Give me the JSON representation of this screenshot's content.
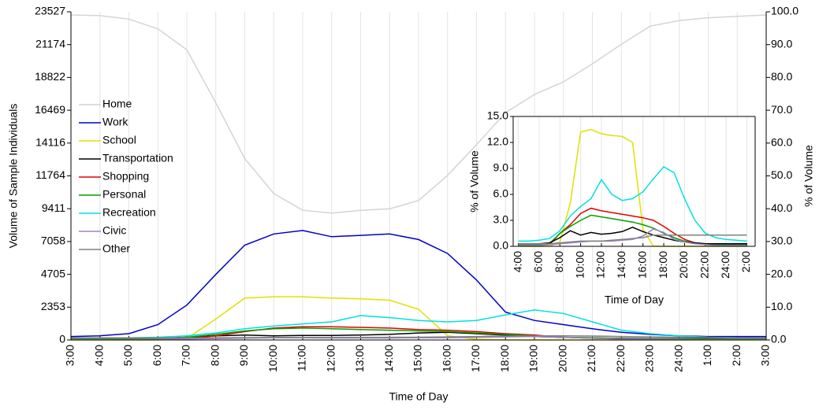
{
  "chart_data": [
    {
      "type": "line",
      "xlabel": "Time of Day",
      "ylabel": "Volume of Sample Individuals",
      "y2label": "% of Volume",
      "grid": true,
      "legend": "upper left",
      "x": [
        3,
        4,
        5,
        6,
        7,
        8,
        9,
        10,
        11,
        12,
        13,
        14,
        15,
        16,
        17,
        18,
        19,
        20,
        21,
        22,
        23,
        24,
        25,
        26,
        27
      ],
      "xlim": [
        3,
        27
      ],
      "xticks": [
        {
          "value": 3,
          "label": "3:00"
        },
        {
          "value": 4,
          "label": "4:00"
        },
        {
          "value": 5,
          "label": "5:00"
        },
        {
          "value": 6,
          "label": "6:00"
        },
        {
          "value": 7,
          "label": "7:00"
        },
        {
          "value": 8,
          "label": "8:00"
        },
        {
          "value": 9,
          "label": "9:00"
        },
        {
          "value": 10,
          "label": "10:00"
        },
        {
          "value": 11,
          "label": "11:00"
        },
        {
          "value": 12,
          "label": "12:00"
        },
        {
          "value": 13,
          "label": "13:00"
        },
        {
          "value": 14,
          "label": "14:00"
        },
        {
          "value": 15,
          "label": "15:00"
        },
        {
          "value": 16,
          "label": "16:00"
        },
        {
          "value": 17,
          "label": "17:00"
        },
        {
          "value": 18,
          "label": "18:00"
        },
        {
          "value": 19,
          "label": "19:00"
        },
        {
          "value": 20,
          "label": "20:00"
        },
        {
          "value": 21,
          "label": "21:00"
        },
        {
          "value": 22,
          "label": "22:00"
        },
        {
          "value": 23,
          "label": "23:00"
        },
        {
          "value": 24,
          "label": "24:00"
        },
        {
          "value": 25,
          "label": "1:00"
        },
        {
          "value": 26,
          "label": "2:00"
        },
        {
          "value": 27,
          "label": "3:00"
        }
      ],
      "ylim": [
        0,
        23527
      ],
      "yticks": [
        0,
        2353,
        4705,
        7058,
        9411,
        11764,
        14116,
        16469,
        18822,
        21174,
        23527
      ],
      "y2lim": [
        0,
        100
      ],
      "y2ticks": [
        {
          "value": 0,
          "label": "0.0"
        },
        {
          "value": 10,
          "label": "10.0"
        },
        {
          "value": 20,
          "label": "20.0"
        },
        {
          "value": 30,
          "label": "30.0"
        },
        {
          "value": 40,
          "label": "40.0"
        },
        {
          "value": 50,
          "label": "50.0"
        },
        {
          "value": 60,
          "label": "60.0"
        },
        {
          "value": 70,
          "label": "70.0"
        },
        {
          "value": 80,
          "label": "80.0"
        },
        {
          "value": 90,
          "label": "90.0"
        },
        {
          "value": 100,
          "label": "100.0"
        }
      ],
      "series": [
        {
          "name": "Home",
          "color": "#d4d4d4",
          "values": [
            23300,
            23250,
            23000,
            22300,
            20800,
            17000,
            13000,
            10500,
            9300,
            9100,
            9300,
            9400,
            10000,
            11800,
            14000,
            16300,
            17600,
            18500,
            19800,
            21200,
            22500,
            22900,
            23100,
            23200,
            23300
          ]
        },
        {
          "name": "Work",
          "color": "#0000c8",
          "values": [
            250,
            300,
            450,
            1100,
            2500,
            4700,
            6800,
            7600,
            7850,
            7400,
            7500,
            7600,
            7200,
            6200,
            4300,
            2000,
            1400,
            1100,
            800,
            550,
            400,
            300,
            250,
            250,
            250
          ]
        },
        {
          "name": "School",
          "color": "#e0e000",
          "values": [
            0,
            0,
            0,
            0,
            100,
            1500,
            3000,
            3100,
            3100,
            3000,
            2950,
            2850,
            2200,
            300,
            50,
            0,
            0,
            0,
            0,
            0,
            0,
            0,
            0,
            0,
            0
          ]
        },
        {
          "name": "Transportation",
          "color": "#000000",
          "values": [
            100,
            100,
            100,
            120,
            200,
            300,
            350,
            300,
            330,
            320,
            350,
            400,
            500,
            550,
            450,
            350,
            250,
            180,
            150,
            120,
            100,
            100,
            100,
            100,
            100
          ]
        },
        {
          "name": "Shopping",
          "color": "#e00000",
          "values": [
            50,
            50,
            50,
            60,
            100,
            300,
            600,
            850,
            950,
            950,
            900,
            850,
            750,
            700,
            600,
            450,
            350,
            200,
            120,
            80,
            60,
            50,
            50,
            50,
            50
          ]
        },
        {
          "name": "Personal",
          "color": "#00a000",
          "values": [
            80,
            80,
            80,
            100,
            200,
            400,
            650,
            800,
            850,
            800,
            750,
            700,
            650,
            600,
            500,
            400,
            300,
            200,
            150,
            100,
            80,
            80,
            80,
            80,
            80
          ]
        },
        {
          "name": "Recreation",
          "color": "#00e0e0",
          "values": [
            150,
            150,
            160,
            200,
            300,
            500,
            800,
            1000,
            1150,
            1300,
            1750,
            1600,
            1400,
            1300,
            1400,
            1800,
            2150,
            1900,
            1300,
            700,
            450,
            300,
            200,
            150,
            150
          ]
        },
        {
          "name": "Civic",
          "color": "#a080c8",
          "values": [
            30,
            30,
            30,
            40,
            60,
            100,
            130,
            150,
            150,
            140,
            140,
            140,
            150,
            160,
            180,
            220,
            250,
            200,
            120,
            80,
            50,
            40,
            30,
            30,
            30
          ]
        },
        {
          "name": "Other",
          "color": "#808080",
          "values": [
            150,
            150,
            150,
            150,
            150,
            160,
            170,
            180,
            180,
            180,
            180,
            190,
            200,
            220,
            250,
            280,
            300,
            300,
            280,
            250,
            220,
            200,
            180,
            160,
            150
          ]
        }
      ]
    },
    {
      "type": "line",
      "xlabel": "Time of Day",
      "ylabel": "% of Volume",
      "grid": true,
      "x": [
        4,
        5,
        6,
        7,
        8,
        9,
        10,
        11,
        12,
        13,
        14,
        15,
        16,
        17,
        18,
        19,
        20,
        21,
        22,
        23,
        24,
        25,
        26
      ],
      "xlim": [
        3.5,
        26.8
      ],
      "xticks": [
        {
          "value": 4,
          "label": "4:00"
        },
        {
          "value": 6,
          "label": "6:00"
        },
        {
          "value": 8,
          "label": "8:00"
        },
        {
          "value": 10,
          "label": "10:00"
        },
        {
          "value": 12,
          "label": "12:00"
        },
        {
          "value": 14,
          "label": "14:00"
        },
        {
          "value": 16,
          "label": "16:00"
        },
        {
          "value": 18,
          "label": "18:00"
        },
        {
          "value": 20,
          "label": "20:00"
        },
        {
          "value": 22,
          "label": "22:00"
        },
        {
          "value": 24,
          "label": "24:00"
        },
        {
          "value": 26,
          "label": "2:00"
        }
      ],
      "ylim": [
        0,
        15
      ],
      "yticks": [
        {
          "value": 0,
          "label": "0.0"
        },
        {
          "value": 3,
          "label": "3.0"
        },
        {
          "value": 6,
          "label": "6.0"
        },
        {
          "value": 9,
          "label": "9.0"
        },
        {
          "value": 12,
          "label": "12.0"
        },
        {
          "value": 15,
          "label": "15.0"
        }
      ],
      "series": [
        {
          "color": "#e0e000",
          "values": [
            0,
            0,
            0,
            0,
            0.5,
            5,
            13.2,
            13.5,
            13,
            12.8,
            12.7,
            12,
            2,
            0,
            0,
            0,
            0,
            0,
            0,
            0,
            0,
            0,
            0
          ]
        },
        {
          "color": "#00e0e0",
          "values": [
            0.6,
            0.6,
            0.7,
            0.9,
            1.8,
            3.5,
            4.6,
            5.5,
            7.7,
            6.0,
            5.3,
            5.5,
            6.3,
            7.8,
            9.2,
            8.5,
            5.5,
            3.0,
            1.5,
            1.0,
            0.8,
            0.7,
            0.6
          ]
        },
        {
          "color": "#e00000",
          "values": [
            0.1,
            0.1,
            0.1,
            0.2,
            1.5,
            2.5,
            3.8,
            4.4,
            4.1,
            3.9,
            3.7,
            3.5,
            3.3,
            3.0,
            2.3,
            1.5,
            0.8,
            0.4,
            0.2,
            0.1,
            0.1,
            0.1,
            0.1
          ]
        },
        {
          "color": "#00a000",
          "values": [
            0.2,
            0.2,
            0.2,
            0.3,
            1.5,
            2.3,
            3.0,
            3.6,
            3.4,
            3.2,
            3.0,
            2.8,
            2.5,
            2.1,
            1.5,
            1.0,
            0.6,
            0.4,
            0.3,
            0.2,
            0.2,
            0.2,
            0.2
          ]
        },
        {
          "color": "#000000",
          "values": [
            0.3,
            0.3,
            0.3,
            0.4,
            1.0,
            1.8,
            1.3,
            1.6,
            1.4,
            1.5,
            1.7,
            2.2,
            1.7,
            1.3,
            1.0,
            0.7,
            0.5,
            0.4,
            0.3,
            0.3,
            0.3,
            0.3,
            0.3
          ]
        },
        {
          "color": "#a080c8",
          "values": [
            0.1,
            0.1,
            0.1,
            0.2,
            0.3,
            0.4,
            0.5,
            0.6,
            0.6,
            0.6,
            0.7,
            0.8,
            1.2,
            2.0,
            1.6,
            0.8,
            0.5,
            0.3,
            0.2,
            0.1,
            0.1,
            0.1,
            0.1
          ]
        },
        {
          "color": "#808080",
          "values": [
            0.3,
            0.3,
            0.3,
            0.3,
            0.4,
            0.5,
            0.6,
            0.6,
            0.6,
            0.7,
            0.8,
            0.9,
            1.0,
            1.3,
            1.3,
            1.3,
            1.3,
            1.3,
            1.3,
            1.3,
            1.3,
            1.3,
            1.3
          ]
        }
      ]
    }
  ]
}
